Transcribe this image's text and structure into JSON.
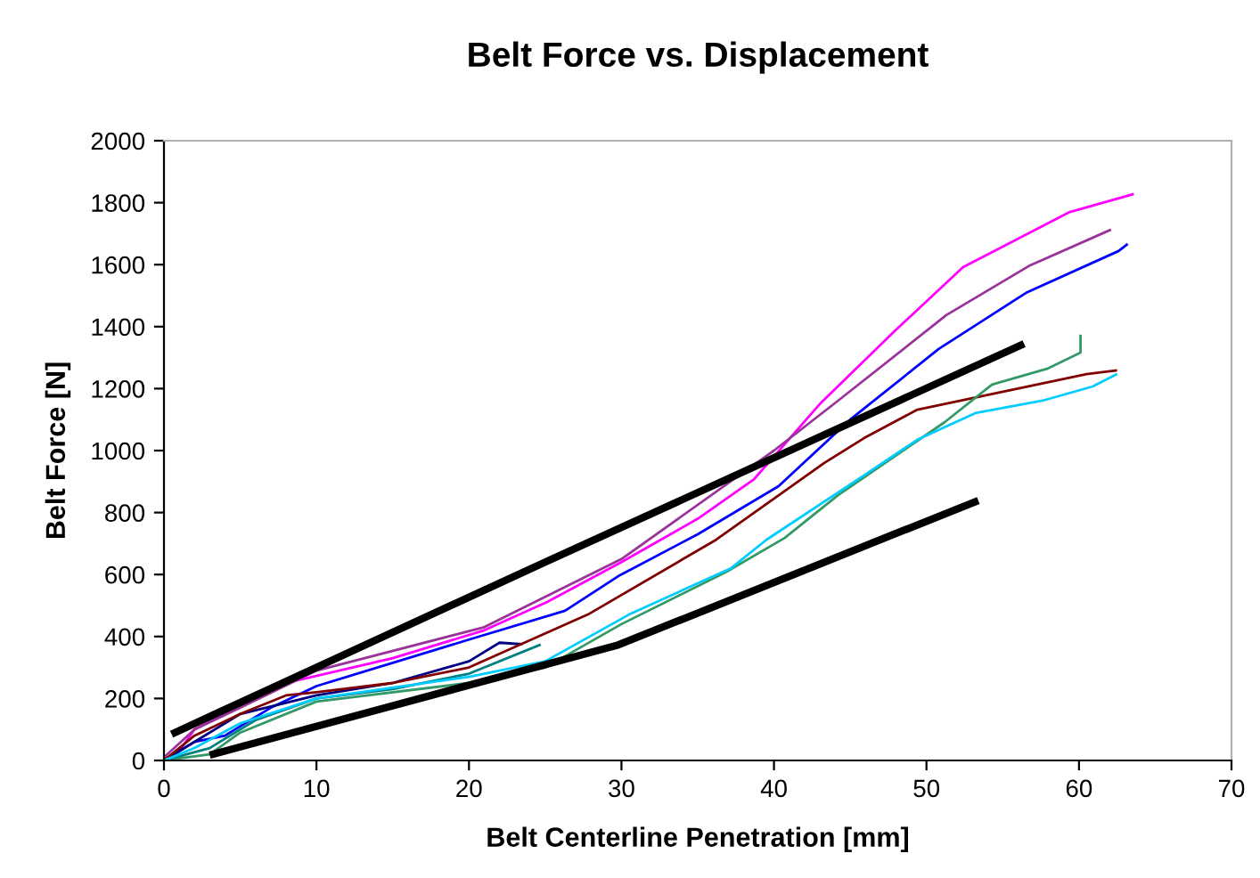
{
  "chart_data": {
    "type": "line",
    "title": "Belt Force vs. Displacement",
    "xlabel": "Belt Centerline Penetration [mm]",
    "ylabel": "Belt Force [N]",
    "xlim": [
      0,
      70
    ],
    "xticks": [
      0,
      10,
      20,
      30,
      40,
      50,
      60,
      70
    ],
    "ylim": [
      0,
      2000
    ],
    "yticks": [
      0,
      200,
      400,
      600,
      800,
      1000,
      1200,
      1400,
      1600,
      1800,
      2000
    ],
    "grid": false,
    "legend": false,
    "marker": "none",
    "line_style": "solid",
    "series": [
      {
        "color": "#ff00ff",
        "x": [
          0,
          1,
          2,
          4,
          8,
          15,
          21,
          25.1,
          30,
          35,
          38.7,
          43,
          47.9,
          52.4,
          59.4,
          63.6
        ],
        "values": [
          0,
          30,
          100,
          150,
          250,
          330,
          420,
          511,
          640,
          780,
          908,
          1150,
          1385,
          1592,
          1770,
          1828
        ]
      },
      {
        "color": "#993399",
        "x": [
          0,
          2,
          5,
          10,
          21,
          30,
          40,
          44.2,
          51.3,
          56.8,
          62.1
        ],
        "values": [
          10,
          100,
          170,
          290,
          430,
          650,
          1000,
          1161,
          1437,
          1598,
          1713
        ]
      },
      {
        "color": "#0000ff",
        "x": [
          0,
          2,
          4,
          7,
          10,
          20,
          26.3,
          29.9,
          35,
          40.3,
          45,
          50.8,
          56.6,
          62.6,
          63.2
        ],
        "values": [
          0,
          60,
          80,
          170,
          240,
          390,
          483,
          598,
          730,
          885,
          1100,
          1328,
          1511,
          1644,
          1667
        ]
      },
      {
        "color": "#000080",
        "x": [
          0,
          5,
          10,
          15,
          20,
          22,
          23.5
        ],
        "values": [
          0,
          150,
          210,
          250,
          320,
          380,
          375
        ]
      },
      {
        "color": "#800000",
        "x": [
          0,
          2,
          5,
          8,
          10,
          15,
          20,
          25.7,
          27.8,
          36.2,
          43.3,
          45.9,
          49.4,
          60.5,
          62.5
        ],
        "values": [
          0,
          80,
          150,
          210,
          220,
          250,
          300,
          425,
          471,
          712,
          960,
          1040,
          1132,
          1247,
          1259
        ]
      },
      {
        "color": "#339966",
        "x": [
          0,
          3,
          5,
          10,
          20,
          25,
          30,
          36.9,
          40.7,
          44.2,
          51.2,
          54.3,
          57.9,
          60.1,
          60.1
        ],
        "values": [
          0,
          20,
          90,
          190,
          250,
          300,
          440,
          609,
          718,
          856,
          1092,
          1213,
          1264,
          1316,
          1374
        ]
      },
      {
        "color": "#008080",
        "x": [
          0,
          3,
          6,
          10,
          15,
          20,
          24.7
        ],
        "values": [
          0,
          40,
          130,
          200,
          230,
          280,
          374
        ]
      },
      {
        "color": "#00ccff",
        "x": [
          0,
          2,
          5,
          10,
          20,
          25,
          30.5,
          37.2,
          39.5,
          45.9,
          49.4,
          53.2,
          57.6,
          60.9,
          62.5
        ],
        "values": [
          0,
          40,
          120,
          200,
          270,
          320,
          471,
          621,
          712,
          920,
          1035,
          1121,
          1161,
          1207,
          1247
        ]
      },
      {
        "color": "#000000",
        "x": [
          0.5,
          25,
          56.4
        ],
        "values": [
          85,
          640,
          1345
        ]
      },
      {
        "color": "#000000",
        "x": [
          3,
          29.8,
          53.4
        ],
        "values": [
          17,
          373,
          839
        ]
      }
    ]
  }
}
